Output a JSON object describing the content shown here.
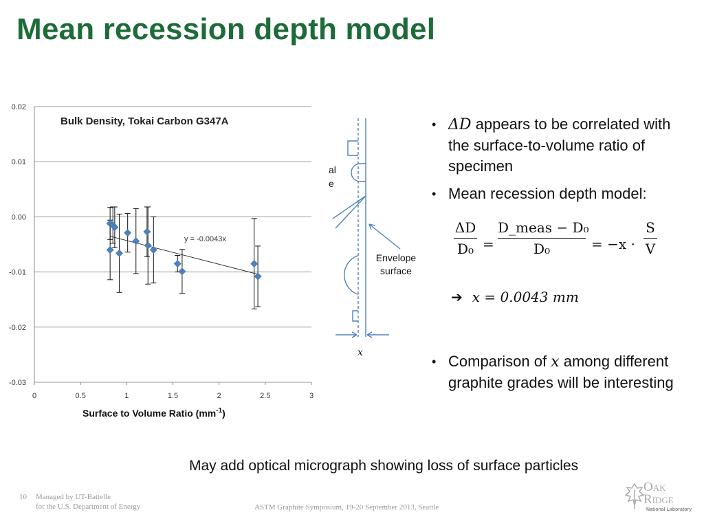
{
  "slide": {
    "title": "Mean recession depth model",
    "page_number": "10",
    "footer_left_line1": "Managed by UT-Battelle",
    "footer_left_line2": "for the U.S. Department of Energy",
    "footer_center": "ASTM Graphite Symposium, 19-20 September 2013, Seattle",
    "logo_line1": "Oak",
    "logo_line2": "Ridge",
    "logo_line3": "National Laboratory",
    "note": "May add optical micrograph showing loss of surface particles"
  },
  "chart_data": {
    "type": "scatter",
    "title": "Bulk Density, Tokai Carbon G347A",
    "xlabel": "Surface to Volume Ratio (mm",
    "xlabel_sup": "-1",
    "xlabel_close": ")",
    "ylabel": "",
    "xlim": [
      0,
      3
    ],
    "ylim": [
      -0.03,
      0.02
    ],
    "x_ticks": [
      "0",
      "0.5",
      "1",
      "1.5",
      "2",
      "2.5",
      "3"
    ],
    "y_ticks": [
      "0.02",
      "0.01",
      "0.00",
      "-0.01",
      "-0.02",
      "-0.03"
    ],
    "grid": true,
    "legend": "none",
    "trendline_label": "y = -0.0043x",
    "trendline_slope": -0.0043,
    "marker_color": "#4f81bd",
    "points": [
      {
        "x": 0.82,
        "y": -0.0012,
        "err": 0.0029
      },
      {
        "x": 0.85,
        "y": -0.0015,
        "err": 0.0033
      },
      {
        "x": 0.87,
        "y": -0.0019,
        "err": 0.0037
      },
      {
        "x": 0.82,
        "y": -0.006,
        "err": 0.0054
      },
      {
        "x": 0.92,
        "y": -0.0066,
        "err": 0.0071
      },
      {
        "x": 1.01,
        "y": -0.0029,
        "err": 0.0035
      },
      {
        "x": 1.1,
        "y": -0.0044,
        "err": 0.0059
      },
      {
        "x": 1.22,
        "y": -0.0027,
        "err": 0.0045
      },
      {
        "x": 1.23,
        "y": -0.0052,
        "err": 0.007
      },
      {
        "x": 1.29,
        "y": -0.006,
        "err": 0.006
      },
      {
        "x": 1.55,
        "y": -0.0085,
        "err": 0.0015
      },
      {
        "x": 1.6,
        "y": -0.0099,
        "err": 0.004
      },
      {
        "x": 2.38,
        "y": -0.0085,
        "err": 0.0082
      },
      {
        "x": 2.42,
        "y": -0.0108,
        "err": 0.0055
      }
    ]
  },
  "diagram": {
    "partial_label_1": "al",
    "partial_label_2": "e",
    "envelope_label_1": "Envelope",
    "envelope_label_2": "surface",
    "x_symbol": "x"
  },
  "bullets": {
    "b1_sym": "ΔD",
    "b1_text": " appears to be correlated with the surface-to-volume ratio of specimen",
    "b2_text": "Mean recession depth model:",
    "b3_pre": "Comparison of ",
    "b3_sym": "x",
    "b3_post": " among different graphite grades will be interesting"
  },
  "formula": {
    "lhs_num": "ΔD",
    "lhs_den": "D₀",
    "equals": "=",
    "mid_num": "D_meas − D₀",
    "mid_den": "D₀",
    "rhs": "= −x ·",
    "rhs_num": "S",
    "rhs_den": "V",
    "result_arrow": "➔",
    "result": "x = 0.0043 mm"
  }
}
